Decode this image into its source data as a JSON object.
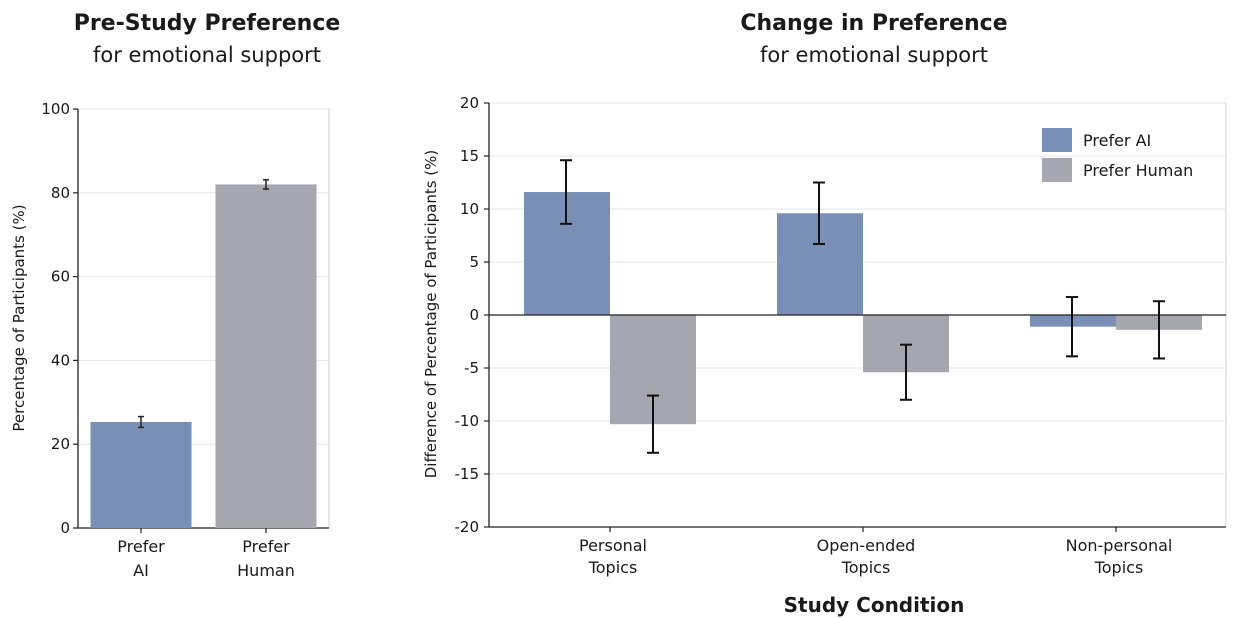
{
  "colors": {
    "ai": "#7a8fb5",
    "human": "#a6a6b0",
    "grid": "#e6e6e6",
    "frame": "#cfcfcf",
    "axis": "#222222"
  },
  "chart_data": [
    {
      "type": "bar",
      "title": "Pre-Study Preference",
      "subtitle": "for emotional support",
      "categories": [
        [
          "Prefer",
          "AI"
        ],
        [
          "Prefer",
          "Human"
        ]
      ],
      "values": [
        25.3,
        82.0
      ],
      "errors": [
        1.3,
        1.1
      ],
      "bar_colors": [
        "ai",
        "human"
      ],
      "ylabel": "Percentage of Participants (%)",
      "ylim": [
        0,
        100
      ],
      "yticks": [
        0,
        20,
        40,
        60,
        80,
        100
      ],
      "grid": true
    },
    {
      "type": "bar",
      "title": "Change in Preference",
      "subtitle": "for emotional support",
      "categories": [
        [
          "Personal",
          "Topics"
        ],
        [
          "Open-ended",
          "Topics"
        ],
        [
          "Non-personal",
          "Topics"
        ]
      ],
      "series": [
        {
          "name": "Prefer AI",
          "color": "ai",
          "values": [
            11.6,
            9.6,
            -1.1
          ],
          "errors": [
            3.0,
            2.9,
            2.8
          ]
        },
        {
          "name": "Prefer Human",
          "color": "human",
          "values": [
            -10.3,
            -5.4,
            -1.4
          ],
          "errors": [
            2.7,
            2.6,
            2.7
          ]
        }
      ],
      "xlabel": "Study Condition",
      "ylabel": "Difference of Percentage of Participants (%)",
      "ylim": [
        -20,
        20
      ],
      "yticks": [
        -20,
        -15,
        -10,
        -5,
        0,
        5,
        10,
        15,
        20
      ],
      "grid": true,
      "legend": "top-right"
    }
  ]
}
